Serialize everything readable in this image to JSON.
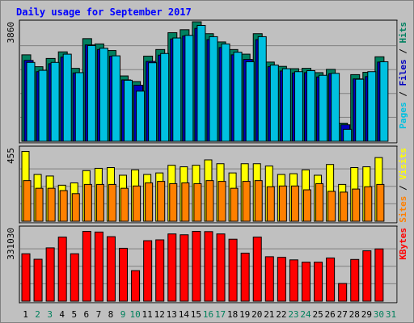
{
  "chart_data": [
    {
      "type": "bar",
      "title": "Daily usage for September 2017",
      "ymax_label": "3860",
      "right_axis": [
        {
          "text": "Pages",
          "color": "#00c0e0"
        },
        {
          "text": " / ",
          "color": "#000000"
        },
        {
          "text": "Files",
          "color": "#0000c0"
        },
        {
          "text": " / ",
          "color": "#000000"
        },
        {
          "text": "Hits",
          "color": "#008060"
        }
      ],
      "categories": [
        "1",
        "2",
        "3",
        "4",
        "5",
        "6",
        "7",
        "8",
        "9",
        "10",
        "11",
        "12",
        "13",
        "14",
        "15",
        "16",
        "17",
        "18",
        "19",
        "20",
        "21",
        "22",
        "23",
        "24",
        "25",
        "26",
        "27",
        "28",
        "29",
        "30",
        "31"
      ],
      "series": [
        {
          "name": "Hits",
          "color": "#008060",
          "values": [
            2620,
            2260,
            2510,
            2710,
            2210,
            3110,
            2950,
            2750,
            1980,
            1810,
            2580,
            2780,
            3290,
            3380,
            3620,
            3260,
            3010,
            2780,
            2640,
            3260,
            2400,
            2270,
            2200,
            2210,
            2080,
            2180,
            550,
            2020,
            2090,
            2560,
            0
          ]
        },
        {
          "name": "Files",
          "color": "#0000c0",
          "values": [
            2450,
            2110,
            2350,
            2550,
            2070,
            2920,
            2780,
            2580,
            1860,
            1700,
            2420,
            2610,
            3100,
            3190,
            3420,
            3080,
            2840,
            2620,
            2480,
            3080,
            2260,
            2130,
            2070,
            2080,
            1950,
            2050,
            500,
            1890,
            1960,
            2400,
            0
          ]
        },
        {
          "name": "Pages",
          "color": "#00c0e0",
          "values": [
            2390,
            2150,
            2390,
            2640,
            2080,
            2900,
            2820,
            2590,
            1850,
            1520,
            2380,
            2660,
            3130,
            3210,
            3510,
            3170,
            2950,
            2700,
            2410,
            3170,
            2310,
            2200,
            2110,
            2140,
            2000,
            2060,
            360,
            1880,
            2110,
            2410,
            0
          ]
        }
      ]
    },
    {
      "type": "bar",
      "ymax_label": "455",
      "right_axis": [
        {
          "text": "Sites",
          "color": "#ff8000"
        },
        {
          "text": " / ",
          "color": "#000000"
        },
        {
          "text": "Visits",
          "color": "#ffff00"
        }
      ],
      "categories": [
        "1",
        "2",
        "3",
        "4",
        "5",
        "6",
        "7",
        "8",
        "9",
        "10",
        "11",
        "12",
        "13",
        "14",
        "15",
        "16",
        "17",
        "18",
        "19",
        "20",
        "21",
        "22",
        "23",
        "24",
        "25",
        "26",
        "27",
        "28",
        "29",
        "30",
        "31"
      ],
      "series": [
        {
          "name": "Visits",
          "color": "#ffff00",
          "values": [
            455,
            305,
            295,
            235,
            250,
            330,
            345,
            350,
            300,
            335,
            305,
            315,
            365,
            355,
            365,
            400,
            375,
            315,
            375,
            375,
            360,
            305,
            310,
            335,
            300,
            370,
            240,
            350,
            355,
            415,
            0
          ]
        },
        {
          "name": "Sites",
          "color": "#ff8000",
          "values": [
            265,
            215,
            215,
            200,
            180,
            240,
            240,
            240,
            215,
            230,
            250,
            260,
            245,
            250,
            245,
            265,
            260,
            215,
            260,
            265,
            225,
            230,
            230,
            205,
            245,
            195,
            190,
            210,
            225,
            240,
            0
          ]
        }
      ]
    },
    {
      "type": "bar",
      "ymax_label": "331030",
      "right_axis": [
        {
          "text": "KBytes",
          "color": "#ff0000"
        }
      ],
      "categories": [
        "1",
        "2",
        "3",
        "4",
        "5",
        "6",
        "7",
        "8",
        "9",
        "10",
        "11",
        "12",
        "13",
        "14",
        "15",
        "16",
        "17",
        "18",
        "19",
        "20",
        "21",
        "22",
        "23",
        "24",
        "25",
        "26",
        "27",
        "28",
        "29",
        "30",
        "31"
      ],
      "series": [
        {
          "name": "KBytes",
          "color": "#ff0000",
          "values": [
            225000,
            199000,
            253000,
            304000,
            225000,
            331030,
            328000,
            306000,
            251000,
            145000,
            287000,
            291000,
            319000,
            315000,
            331030,
            330000,
            319000,
            294000,
            228000,
            304000,
            211000,
            208000,
            196000,
            185000,
            185000,
            205000,
            84000,
            198000,
            239000,
            248000,
            0
          ]
        }
      ]
    }
  ],
  "weekend_days": [
    "2",
    "3",
    "9",
    "10",
    "16",
    "17",
    "23",
    "24",
    "30",
    "31"
  ],
  "colors": {
    "background": "#c0c0c0",
    "panel": "#c0c0c0",
    "title": "#0000ff",
    "label": "#000000",
    "weekday": "#000000",
    "weekend": "#00805c"
  }
}
